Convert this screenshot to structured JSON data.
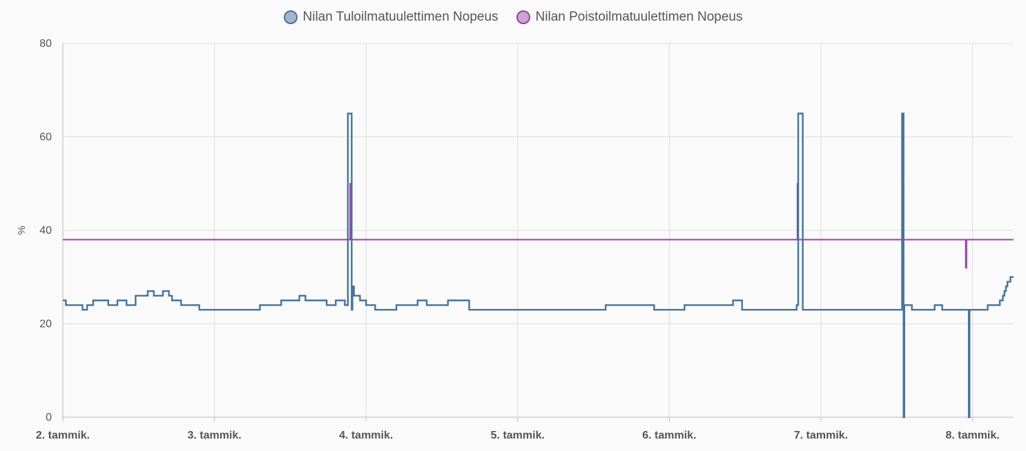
{
  "chart_data": {
    "type": "line",
    "ylabel": "%",
    "ylim": [
      0,
      80
    ],
    "xlim": [
      2.0,
      8.27
    ],
    "y_ticks": [
      "0",
      "20",
      "40",
      "60",
      "80"
    ],
    "x_ticks": [
      {
        "x": 2,
        "label": "2. tammik."
      },
      {
        "x": 3,
        "label": "3. tammik."
      },
      {
        "x": 4,
        "label": "4. tammik."
      },
      {
        "x": 5,
        "label": "5. tammik."
      },
      {
        "x": 6,
        "label": "6. tammik."
      },
      {
        "x": 7,
        "label": "7. tammik."
      },
      {
        "x": 8,
        "label": "8. tammik."
      }
    ],
    "grid": true,
    "legend_position": "top-center",
    "series": [
      {
        "name": "Nilan Tuloilmatuulettimen Nopeus",
        "color": "#44739e",
        "step": true,
        "points": [
          [
            2.0,
            25
          ],
          [
            2.02,
            24
          ],
          [
            2.1,
            24
          ],
          [
            2.13,
            23
          ],
          [
            2.16,
            24
          ],
          [
            2.2,
            25
          ],
          [
            2.3,
            24
          ],
          [
            2.36,
            25
          ],
          [
            2.42,
            24
          ],
          [
            2.48,
            26
          ],
          [
            2.56,
            27
          ],
          [
            2.6,
            26
          ],
          [
            2.66,
            27
          ],
          [
            2.7,
            26
          ],
          [
            2.72,
            25
          ],
          [
            2.78,
            24
          ],
          [
            2.86,
            24
          ],
          [
            2.9,
            23
          ],
          [
            3.0,
            23
          ],
          [
            3.2,
            23
          ],
          [
            3.3,
            24
          ],
          [
            3.4,
            24
          ],
          [
            3.44,
            25
          ],
          [
            3.5,
            25
          ],
          [
            3.56,
            26
          ],
          [
            3.6,
            25
          ],
          [
            3.66,
            25
          ],
          [
            3.74,
            24
          ],
          [
            3.8,
            25
          ],
          [
            3.86,
            24
          ],
          [
            3.88,
            65
          ],
          [
            3.905,
            23
          ],
          [
            3.91,
            28
          ],
          [
            3.92,
            26
          ],
          [
            3.96,
            25
          ],
          [
            4.0,
            24
          ],
          [
            4.06,
            23
          ],
          [
            4.2,
            24
          ],
          [
            4.3,
            24
          ],
          [
            4.34,
            25
          ],
          [
            4.4,
            24
          ],
          [
            4.5,
            24
          ],
          [
            4.54,
            25
          ],
          [
            4.62,
            25
          ],
          [
            4.68,
            23
          ],
          [
            4.8,
            23
          ],
          [
            5.0,
            23
          ],
          [
            5.3,
            23
          ],
          [
            5.58,
            24
          ],
          [
            5.7,
            24
          ],
          [
            5.8,
            24
          ],
          [
            5.9,
            23
          ],
          [
            6.0,
            23
          ],
          [
            6.1,
            24
          ],
          [
            6.3,
            24
          ],
          [
            6.42,
            25
          ],
          [
            6.48,
            23
          ],
          [
            6.6,
            23
          ],
          [
            6.8,
            23
          ],
          [
            6.84,
            24
          ],
          [
            6.85,
            65
          ],
          [
            6.88,
            23
          ],
          [
            6.9,
            23
          ],
          [
            7.0,
            23
          ],
          [
            7.2,
            23
          ],
          [
            7.4,
            23
          ],
          [
            7.535,
            65
          ],
          [
            7.545,
            0
          ],
          [
            7.55,
            24
          ],
          [
            7.6,
            23
          ],
          [
            7.7,
            23
          ],
          [
            7.75,
            24
          ],
          [
            7.8,
            23
          ],
          [
            7.96,
            23
          ],
          [
            7.975,
            0
          ],
          [
            7.98,
            23
          ],
          [
            8.0,
            23
          ],
          [
            8.1,
            24
          ],
          [
            8.15,
            24
          ],
          [
            8.18,
            25
          ],
          [
            8.2,
            26
          ],
          [
            8.21,
            27
          ],
          [
            8.22,
            28
          ],
          [
            8.23,
            29
          ],
          [
            8.25,
            30
          ],
          [
            8.27,
            30
          ]
        ]
      },
      {
        "name": "Nilan Poistoilmatuulettimen Nopeus",
        "color": "#9c3ea6",
        "step": true,
        "points": [
          [
            2.0,
            38
          ],
          [
            3.89,
            38
          ],
          [
            3.895,
            50
          ],
          [
            3.9,
            38
          ],
          [
            6.84,
            38
          ],
          [
            6.845,
            50
          ],
          [
            6.85,
            38
          ],
          [
            7.535,
            38
          ],
          [
            7.54,
            50
          ],
          [
            7.545,
            38
          ],
          [
            7.95,
            38
          ],
          [
            7.955,
            32
          ],
          [
            7.96,
            38
          ],
          [
            8.27,
            38
          ]
        ]
      }
    ]
  }
}
